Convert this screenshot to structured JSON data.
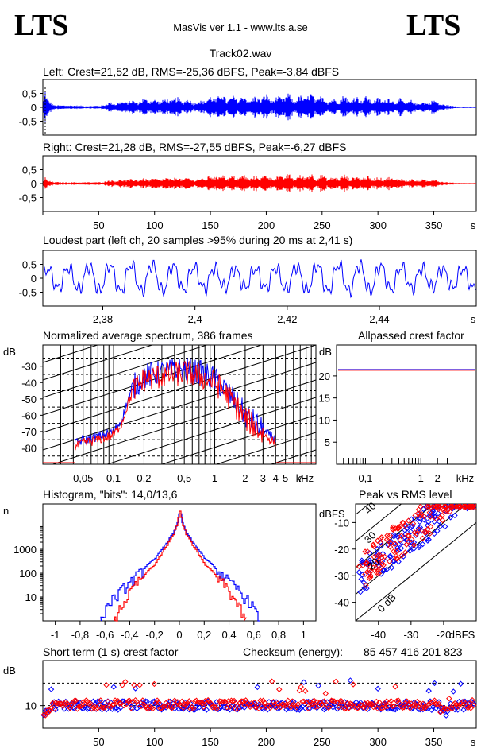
{
  "header": {
    "logo_left": "LTS",
    "logo_right": "LTS",
    "app_title": "MasVis ver 1.1 - www.lts.a.se",
    "file_title": "Track02.wav"
  },
  "colors": {
    "left": "#0000ff",
    "right": "#ff0000",
    "axis": "#000000"
  },
  "chart_data": [
    {
      "id": "left_waveform",
      "type": "line",
      "title": "Left: Crest=21,52 dB, RMS=-25,36 dBFS, Peak=-3,84 dBFS",
      "ytick_labels": [
        "0,5",
        "0",
        "-0,5"
      ],
      "yticks": [
        0.5,
        0,
        -0.5
      ],
      "ylim": [
        -1,
        1
      ],
      "xlim": [
        0,
        388
      ],
      "series": [
        {
          "color": "#0000ff",
          "envelope_x": [
            0,
            2,
            4,
            10,
            20,
            30,
            40,
            50,
            55,
            60,
            65,
            70,
            75,
            80,
            85,
            90,
            95,
            100,
            105,
            110,
            115,
            120,
            125,
            130,
            135,
            140,
            145,
            150,
            155,
            160,
            165,
            170,
            175,
            180,
            185,
            190,
            195,
            200,
            205,
            210,
            215,
            220,
            225,
            230,
            235,
            240,
            245,
            250,
            255,
            260,
            265,
            270,
            275,
            280,
            285,
            290,
            295,
            300,
            305,
            310,
            315,
            320,
            325,
            330,
            335,
            340,
            345,
            350,
            355,
            360,
            365,
            370,
            380,
            388
          ],
          "envelope_y": [
            0.05,
            0.68,
            0.3,
            0.08,
            0.07,
            0.07,
            0.05,
            0.06,
            0.08,
            0.2,
            0.12,
            0.22,
            0.18,
            0.28,
            0.16,
            0.34,
            0.24,
            0.3,
            0.2,
            0.34,
            0.22,
            0.4,
            0.18,
            0.34,
            0.14,
            0.26,
            0.22,
            0.42,
            0.28,
            0.58,
            0.22,
            0.44,
            0.26,
            0.48,
            0.2,
            0.44,
            0.28,
            0.52,
            0.22,
            0.42,
            0.3,
            0.54,
            0.2,
            0.46,
            0.3,
            0.56,
            0.22,
            0.48,
            0.2,
            0.34,
            0.22,
            0.5,
            0.2,
            0.46,
            0.24,
            0.44,
            0.2,
            0.36,
            0.22,
            0.38,
            0.18,
            0.34,
            0.14,
            0.28,
            0.12,
            0.22,
            0.14,
            0.3,
            0.12,
            0.1,
            0.06,
            0.04,
            0.03,
            0.02
          ]
        }
      ]
    },
    {
      "id": "right_waveform",
      "type": "line",
      "title": "Right: Crest=21,28 dB, RMS=-27,55 dBFS, Peak=-6,27 dBFS",
      "ytick_labels": [
        "0,5",
        "0",
        "-0,5"
      ],
      "yticks": [
        0.5,
        0,
        -0.5
      ],
      "ylim": [
        -1,
        1
      ],
      "xlim": [
        0,
        388
      ],
      "xtick_labels": [
        "50",
        "100",
        "150",
        "200",
        "250",
        "300",
        "350",
        "s"
      ],
      "xticks": [
        50,
        100,
        150,
        200,
        250,
        300,
        350
      ],
      "series": [
        {
          "color": "#ff0000",
          "envelope_x": [
            0,
            2,
            4,
            10,
            20,
            30,
            40,
            50,
            55,
            60,
            65,
            70,
            75,
            80,
            85,
            90,
            95,
            100,
            105,
            110,
            115,
            120,
            125,
            130,
            135,
            140,
            145,
            150,
            155,
            160,
            165,
            170,
            175,
            180,
            185,
            190,
            195,
            200,
            205,
            210,
            215,
            220,
            225,
            230,
            235,
            240,
            245,
            250,
            255,
            260,
            265,
            270,
            275,
            280,
            285,
            290,
            295,
            300,
            305,
            310,
            315,
            320,
            325,
            330,
            335,
            340,
            345,
            350,
            355,
            360,
            365,
            370,
            380,
            388
          ],
          "envelope_y": [
            0.05,
            0.25,
            0.12,
            0.06,
            0.05,
            0.05,
            0.05,
            0.05,
            0.07,
            0.14,
            0.1,
            0.16,
            0.12,
            0.18,
            0.12,
            0.2,
            0.14,
            0.2,
            0.14,
            0.22,
            0.16,
            0.26,
            0.14,
            0.24,
            0.12,
            0.2,
            0.16,
            0.32,
            0.22,
            0.4,
            0.18,
            0.3,
            0.2,
            0.34,
            0.16,
            0.3,
            0.2,
            0.36,
            0.18,
            0.3,
            0.22,
            0.38,
            0.16,
            0.32,
            0.22,
            0.4,
            0.18,
            0.36,
            0.16,
            0.26,
            0.18,
            0.34,
            0.16,
            0.3,
            0.18,
            0.3,
            0.16,
            0.26,
            0.16,
            0.26,
            0.14,
            0.22,
            0.1,
            0.18,
            0.1,
            0.16,
            0.1,
            0.2,
            0.08,
            0.06,
            0.04,
            0.03,
            0.02,
            0.02
          ]
        }
      ]
    },
    {
      "id": "loudest_part",
      "type": "line",
      "title": "Loudest part (left  ch, 20 samples >95% during 20 ms at 2,41 s)",
      "ytick_labels": [
        "0,5",
        "0",
        "-0,5"
      ],
      "yticks": [
        0.5,
        0,
        -0.5
      ],
      "ylim": [
        -1,
        1
      ],
      "xlim": [
        2.367,
        2.461
      ],
      "xtick_labels": [
        "2,38",
        "2,4",
        "2,42",
        "2,44",
        "s"
      ],
      "xticks": [
        2.38,
        2.4,
        2.42,
        2.44
      ],
      "series": [
        {
          "color": "#0000ff",
          "approx_period_s": 0.0045
        }
      ]
    },
    {
      "id": "spectrum",
      "type": "line",
      "title": "Normalized average spectrum, 386 frames",
      "ylabel": "dB",
      "ytick_labels": [
        "-30",
        "-40",
        "-50",
        "-60",
        "-70",
        "-80"
      ],
      "yticks": [
        -30,
        -40,
        -50,
        -60,
        -70,
        -80
      ],
      "ylim": [
        -90,
        -17
      ],
      "xscale": "log",
      "xlim_khz": [
        0.02,
        10
      ],
      "xtick_labels": [
        "0,05",
        "0,1",
        "0,2",
        "0,5",
        "1",
        "2",
        "3",
        "4",
        "5",
        "7",
        "kHz"
      ],
      "xticks_khz": [
        0.05,
        0.1,
        0.2,
        0.5,
        1,
        2,
        3,
        4,
        5,
        7
      ],
      "grid": true,
      "series": [
        {
          "color": "#0000ff",
          "x_khz": [
            0.03,
            0.04,
            0.05,
            0.07,
            0.1,
            0.12,
            0.14,
            0.16,
            0.2,
            0.3,
            0.5,
            0.7,
            1,
            1.5,
            2,
            3,
            5,
            7,
            9
          ],
          "y_db": [
            -82,
            -78,
            -75,
            -73,
            -70,
            -63,
            -50,
            -42,
            -36,
            -34,
            -32,
            -34,
            -38,
            -50,
            -60,
            -70,
            -80,
            -86,
            -89
          ]
        },
        {
          "color": "#ff0000",
          "x_khz": [
            0.03,
            0.04,
            0.05,
            0.07,
            0.1,
            0.12,
            0.14,
            0.16,
            0.2,
            0.3,
            0.5,
            0.7,
            1,
            1.5,
            2,
            3,
            5,
            7,
            9
          ],
          "y_db": [
            -84,
            -80,
            -77,
            -75,
            -72,
            -65,
            -52,
            -44,
            -38,
            -36,
            -34,
            -36,
            -40,
            -52,
            -62,
            -72,
            -82,
            -87,
            -89
          ]
        }
      ]
    },
    {
      "id": "allpassed_crest",
      "type": "line",
      "title": "Allpassed crest factor",
      "ylabel": "dB",
      "ytick_labels": [
        "20",
        "15",
        "10",
        "5"
      ],
      "yticks": [
        20,
        15,
        10,
        5
      ],
      "ylim": [
        0,
        27
      ],
      "xscale": "log",
      "xlim_khz": [
        0.03,
        10
      ],
      "xtick_labels": [
        "0,1",
        "1",
        "2",
        "kHz"
      ],
      "xticks_khz": [
        0.1,
        1,
        2
      ],
      "series": [
        {
          "color": "#0000ff",
          "value_db": 21.4
        },
        {
          "color": "#ff0000",
          "value_db": 21.3
        }
      ]
    },
    {
      "id": "histogram",
      "type": "line",
      "title": "Histogram, \"bits\": 14,0/13,6",
      "ylabel": "n",
      "yscale": "log",
      "ytick_labels": [
        "1000",
        "100",
        "10"
      ],
      "yticks": [
        1000,
        100,
        10
      ],
      "ylim": [
        1,
        80000
      ],
      "xlim": [
        -1.1,
        1.1
      ],
      "xtick_labels": [
        "-1",
        "-0,8",
        "-0,6",
        "-0,4",
        "-0,2",
        "0",
        "0,2",
        "0,4",
        "0,6",
        "0,8",
        "1"
      ],
      "xticks": [
        -1,
        -0.8,
        -0.6,
        -0.4,
        -0.2,
        0,
        0.2,
        0.4,
        0.6,
        0.8,
        1
      ],
      "series": [
        {
          "color": "#0000ff",
          "x": [
            0,
            0.02,
            0.05,
            0.1,
            0.15,
            0.2,
            0.3,
            0.4,
            0.5,
            0.6,
            0.63
          ],
          "y": [
            40000,
            12000,
            5000,
            2000,
            900,
            400,
            120,
            40,
            12,
            3,
            1
          ]
        },
        {
          "color": "#ff0000",
          "x": [
            0,
            0.02,
            0.05,
            0.1,
            0.15,
            0.2,
            0.3,
            0.4,
            0.45,
            0.5,
            0.52
          ],
          "y": [
            40000,
            11000,
            4200,
            1500,
            600,
            220,
            60,
            15,
            6,
            2,
            1
          ]
        }
      ]
    },
    {
      "id": "peak_vs_rms",
      "type": "scatter",
      "title": "Peak vs RMS level",
      "ylabel": "dBFS",
      "xlabel": "dBFS",
      "ytick_labels": [
        "-10",
        "-20",
        "-30",
        "-40"
      ],
      "yticks": [
        -10,
        -20,
        -30,
        -40
      ],
      "ylim": [
        -47,
        -3
      ],
      "xtick_labels": [
        "-40",
        "-30",
        "-20",
        "dBFS"
      ],
      "xticks": [
        -40,
        -30,
        -20
      ],
      "xlim": [
        -47,
        -10
      ],
      "diagonal_labels": [
        "40",
        "30",
        "20",
        "0 dB"
      ],
      "series": [
        {
          "color": "#0000ff",
          "crest_db_range": [
            8,
            22
          ]
        },
        {
          "color": "#ff0000",
          "crest_db_range": [
            10,
            24
          ]
        }
      ]
    },
    {
      "id": "short_term_crest",
      "type": "scatter",
      "title": "Short term (1 s) crest factor",
      "checksum_label": "Checksum (energy):",
      "checksum_value": "85 457 416 201 823",
      "ylabel": "dB",
      "ytick_labels": [
        "10"
      ],
      "yticks": [
        10
      ],
      "ylim": [
        0,
        30
      ],
      "xlim": [
        0,
        388
      ],
      "xtick_labels": [
        "50",
        "100",
        "150",
        "200",
        "250",
        "300",
        "350",
        "s"
      ],
      "xticks": [
        50,
        100,
        150,
        200,
        250,
        300,
        350
      ],
      "reference_lines_db": [
        20,
        10
      ],
      "series": [
        {
          "color": "#0000ff",
          "mean_db": 10
        },
        {
          "color": "#ff0000",
          "mean_db": 10.5
        }
      ]
    }
  ]
}
